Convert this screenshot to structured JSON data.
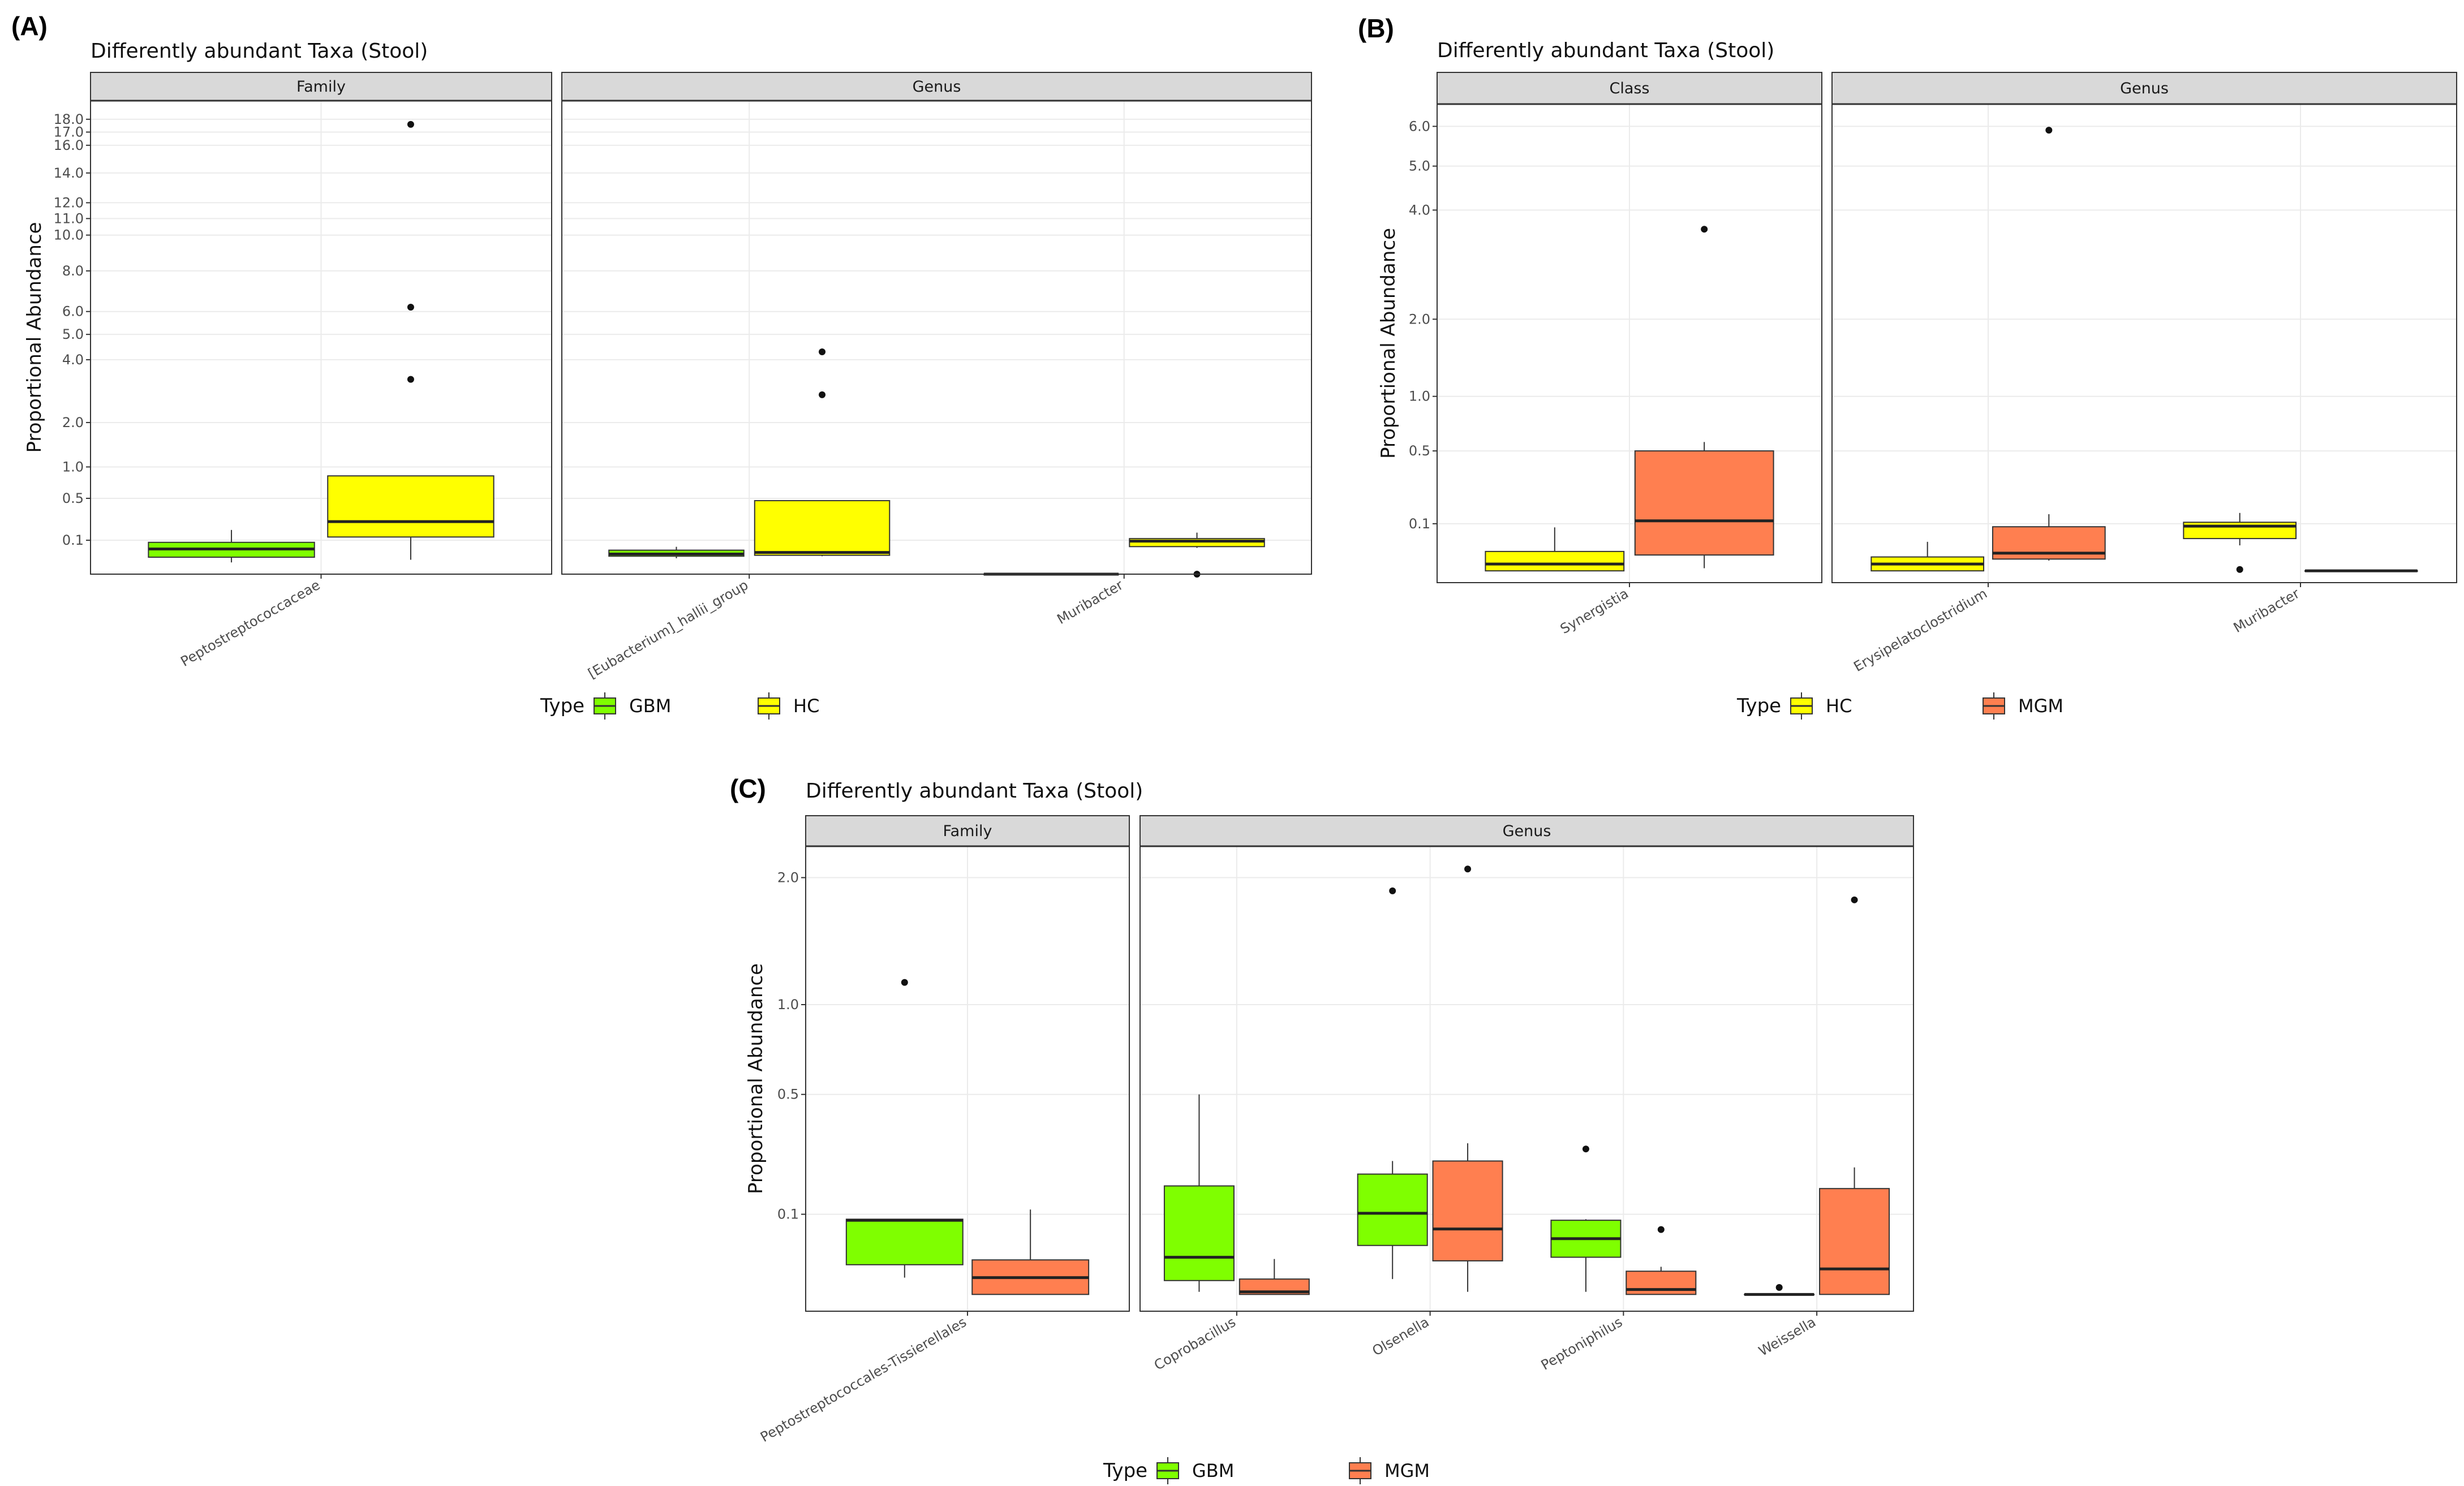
{
  "chart_data": [
    {
      "id": "A",
      "panel_label": "(A)",
      "type": "boxplot",
      "title": "Differently abundant Taxa (Stool)",
      "ylabel": "Proportional Abundance",
      "y_scale": "sqrt",
      "ylim": [
        0,
        19.5
      ],
      "y_ticks": [
        0.1,
        0.5,
        1.0,
        2.0,
        4.0,
        5.0,
        6.0,
        8.0,
        10.0,
        11.0,
        12.0,
        14.0,
        16.0,
        17.0,
        18.0
      ],
      "y_tick_labels": [
        "0.1",
        "0.5",
        "1.0",
        "2.0",
        "4.0",
        "5.0",
        "6.0",
        "8.0",
        "10.0",
        "11.0",
        "12.0",
        "14.0",
        "16.0",
        "17.0",
        "18.0"
      ],
      "legend": {
        "title": "Type",
        "items": [
          {
            "label": "GBM",
            "color": "#7FFF00"
          },
          {
            "label": "HC",
            "color": "#FFFF00"
          }
        ]
      },
      "facets": [
        {
          "label": "Family",
          "categories": [
            "Peptostreptococcaceae"
          ],
          "boxes": [
            {
              "category": 0,
              "group": "GBM",
              "color": "#7FFF00",
              "min": 0.012,
              "q1": 0.025,
              "median": 0.055,
              "q3": 0.088,
              "max": 0.17,
              "outliers": []
            },
            {
              "category": 0,
              "group": "HC",
              "color": "#FFFF00",
              "min": 0.018,
              "q1": 0.12,
              "median": 0.24,
              "q3": 0.84,
              "max": 0.84,
              "outliers": [
                3.3,
                6.2,
                17.6
              ]
            }
          ]
        },
        {
          "label": "Genus",
          "categories": [
            "[Eubacterium]_hallii_group",
            "Muribacter"
          ],
          "boxes": [
            {
              "category": 0,
              "group": "GBM",
              "color": "#7FFF00",
              "min": 0.022,
              "q1": 0.028,
              "median": 0.035,
              "q3": 0.05,
              "max": 0.065,
              "outliers": []
            },
            {
              "category": 0,
              "group": "HC",
              "color": "#FFFF00",
              "min": 0.028,
              "q1": 0.031,
              "median": 0.041,
              "q3": 0.47,
              "max": 0.47,
              "outliers": [
                2.8,
                4.3
              ]
            },
            {
              "category": 1,
              "group": "GBM",
              "color": "#7FFF00",
              "min": 0.0,
              "q1": 0.0,
              "median": 0.0,
              "q3": 0.0,
              "max": 0.0,
              "outliers": []
            },
            {
              "category": 1,
              "group": "HC",
              "color": "#FFFF00",
              "min": 0.06,
              "q1": 0.066,
              "median": 0.095,
              "q3": 0.11,
              "max": 0.15,
              "outliers": [
                0.0
              ]
            }
          ]
        }
      ]
    },
    {
      "id": "B",
      "panel_label": "(B)",
      "type": "boxplot",
      "title": "Differently abundant Taxa (Stool)",
      "ylabel": "Proportional Abundance",
      "y_scale": "sqrt",
      "ylim": [
        0,
        6.6
      ],
      "y_ticks": [
        0.1,
        0.5,
        1.0,
        2.0,
        4.0,
        5.0,
        6.0
      ],
      "y_tick_labels": [
        "0.1",
        "0.5",
        "1.0",
        "2.0",
        "4.0",
        "5.0",
        "6.0"
      ],
      "legend": {
        "title": "Type",
        "items": [
          {
            "label": "HC",
            "color": "#FFFF00"
          },
          {
            "label": "MGM",
            "color": "#FF7F50"
          }
        ]
      },
      "facets": [
        {
          "label": "Class",
          "categories": [
            "Synergistia"
          ],
          "boxes": [
            {
              "category": 0,
              "group": "HC",
              "color": "#FFFF00",
              "min": 0.004,
              "q1": 0.004,
              "median": 0.01,
              "q3": 0.028,
              "max": 0.088,
              "outliers": []
            },
            {
              "category": 0,
              "group": "MGM",
              "color": "#FF7F50",
              "min": 0.006,
              "q1": 0.022,
              "median": 0.11,
              "q3": 0.5,
              "max": 0.57,
              "outliers": [
                3.6
              ]
            }
          ]
        },
        {
          "label": "Genus",
          "categories": [
            "Erysipelatoclostridium",
            "Muribacter"
          ],
          "boxes": [
            {
              "category": 0,
              "group": "HC",
              "color": "#FFFF00",
              "min": 0.004,
              "q1": 0.004,
              "median": 0.01,
              "q3": 0.019,
              "max": 0.048,
              "outliers": []
            },
            {
              "category": 0,
              "group": "MGM",
              "color": "#FF7F50",
              "min": 0.014,
              "q1": 0.016,
              "median": 0.025,
              "q3": 0.09,
              "max": 0.135,
              "outliers": [
                5.9
              ]
            },
            {
              "category": 1,
              "group": "HC",
              "color": "#FFFF00",
              "min": 0.04,
              "q1": 0.056,
              "median": 0.092,
              "q3": 0.105,
              "max": 0.14,
              "outliers": [
                0.005
              ]
            },
            {
              "category": 1,
              "group": "MGM",
              "color": "#FF7F50",
              "min": 0.004,
              "q1": 0.004,
              "median": 0.004,
              "q3": 0.004,
              "max": 0.004,
              "outliers": []
            }
          ]
        }
      ]
    },
    {
      "id": "C",
      "panel_label": "(C)",
      "type": "boxplot",
      "title": "Differently abundant Taxa (Stool)",
      "ylabel": "Proportional Abundance",
      "y_scale": "sqrt",
      "ylim": [
        0,
        2.3
      ],
      "y_ticks": [
        0.1,
        0.5,
        1.0,
        2.0
      ],
      "y_tick_labels": [
        "0.1",
        "0.5",
        "1.0",
        "2.0"
      ],
      "legend": {
        "title": "Type",
        "items": [
          {
            "label": "GBM",
            "color": "#7FFF00"
          },
          {
            "label": "MGM",
            "color": "#FF7F50"
          }
        ]
      },
      "facets": [
        {
          "label": "Family",
          "categories": [
            "Peptostreptococcales-Tissierellales"
          ],
          "boxes": [
            {
              "category": 0,
              "group": "GBM",
              "color": "#7FFF00",
              "min": 0.012,
              "q1": 0.023,
              "median": 0.088,
              "q3": 0.09,
              "max": 0.09,
              "outliers": [
                1.15
              ]
            },
            {
              "category": 0,
              "group": "MGM",
              "color": "#FF7F50",
              "min": 0.003,
              "q1": 0.003,
              "median": 0.012,
              "q3": 0.028,
              "max": 0.11,
              "outliers": []
            }
          ]
        },
        {
          "label": "Genus",
          "categories": [
            "Coprobacillus",
            "Olsenella",
            "Peptoniphilus",
            "Weissella"
          ],
          "boxes": [
            {
              "category": 0,
              "group": "GBM",
              "color": "#7FFF00",
              "min": 0.004,
              "q1": 0.01,
              "median": 0.031,
              "q3": 0.167,
              "max": 0.5,
              "outliers": []
            },
            {
              "category": 0,
              "group": "MGM",
              "color": "#FF7F50",
              "min": 0.003,
              "q1": 0.003,
              "median": 0.004,
              "q3": 0.011,
              "max": 0.029,
              "outliers": []
            },
            {
              "category": 1,
              "group": "GBM",
              "color": "#7FFF00",
              "min": 0.011,
              "q1": 0.046,
              "median": 0.102,
              "q3": 0.2,
              "max": 0.24,
              "outliers": [
                1.88
              ]
            },
            {
              "category": 1,
              "group": "MGM",
              "color": "#FF7F50",
              "min": 0.004,
              "q1": 0.027,
              "median": 0.072,
              "q3": 0.24,
              "max": 0.3,
              "outliers": [
                2.08
              ]
            },
            {
              "category": 2,
              "group": "GBM",
              "color": "#7FFF00",
              "min": 0.004,
              "q1": 0.031,
              "median": 0.056,
              "q3": 0.088,
              "max": 0.09,
              "outliers": [
                0.28
              ]
            },
            {
              "category": 2,
              "group": "MGM",
              "color": "#FF7F50",
              "min": 0.003,
              "q1": 0.003,
              "median": 0.005,
              "q3": 0.017,
              "max": 0.021,
              "outliers": [
                0.071
              ]
            },
            {
              "category": 3,
              "group": "GBM",
              "color": "#7FFF00",
              "min": 0.003,
              "q1": 0.003,
              "median": 0.003,
              "q3": 0.003,
              "max": 0.003,
              "outliers": [
                0.006
              ]
            },
            {
              "category": 3,
              "group": "MGM",
              "color": "#FF7F50",
              "min": 0.003,
              "q1": 0.003,
              "median": 0.019,
              "q3": 0.16,
              "max": 0.22,
              "outliers": [
                1.8
              ]
            }
          ]
        }
      ]
    }
  ]
}
